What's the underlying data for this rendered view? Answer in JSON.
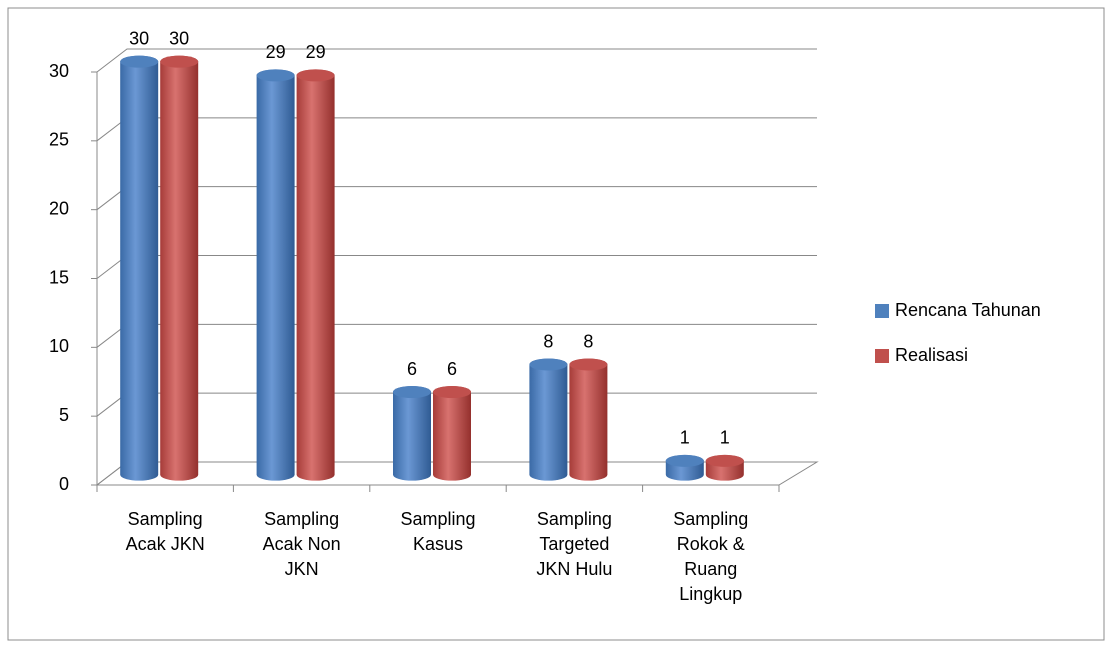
{
  "chart_data": {
    "type": "bar3d",
    "categories": [
      "Sampling Acak JKN",
      "Sampling Acak Non JKN",
      "Sampling Kasus",
      "Sampling Targeted JKN Hulu",
      "Sampling Rokok & Ruang Lingkup"
    ],
    "series": [
      {
        "name": "Rencana Tahunan",
        "color": "#4f81bd",
        "values": [
          30,
          29,
          6,
          8,
          1
        ]
      },
      {
        "name": "Realisasi",
        "color": "#c0504d",
        "values": [
          30,
          29,
          6,
          8,
          1
        ]
      }
    ],
    "ylim": [
      0,
      30
    ],
    "yticks": [
      0,
      5,
      10,
      15,
      20,
      25,
      30
    ],
    "grid": true,
    "legend": "right"
  }
}
